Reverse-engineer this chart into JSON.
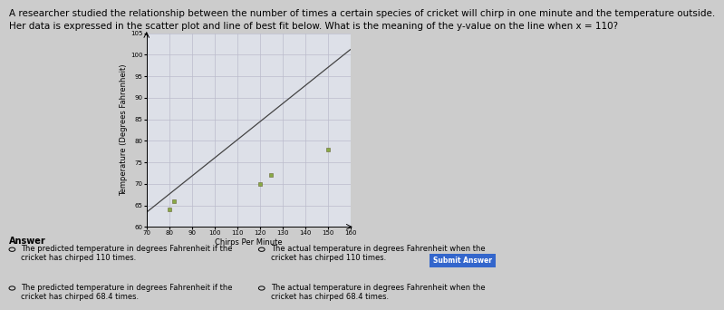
{
  "title_line1": "A researcher studied the relationship between the number of times a certain species of cricket will chirp in one minute and the temperature outside.",
  "title_line2": "Her data is expressed in the scatter plot and line of best fit below. What is the meaning of the y-value on the line when x = 110?",
  "xlabel": "Chirps Per Minute",
  "ylabel": "Temperature (Degrees Fahrenheit)",
  "x_min": 70,
  "x_max": 160,
  "x_ticks": [
    70,
    80,
    90,
    100,
    110,
    120,
    130,
    140,
    150,
    160
  ],
  "y_min": 60,
  "y_max": 105,
  "y_ticks": [
    60,
    65,
    70,
    75,
    80,
    85,
    90,
    95,
    100,
    105
  ],
  "scatter_x": [
    80,
    82,
    120,
    125,
    150
  ],
  "scatter_y": [
    64,
    66,
    70,
    72,
    78
  ],
  "line_x_start": 70,
  "line_x_end": 160,
  "line_slope": 0.42,
  "line_intercept": 34,
  "bg_color": "#cccccc",
  "plot_bg_color": "#dde0e8",
  "grid_color": "#bbbbcc",
  "scatter_color": "#88aa44",
  "line_color": "#444444",
  "answer_label": "Answer",
  "answer_options": [
    "The predicted temperature in degrees Fahrenheit if the\ncricket has chirped 110 times.",
    "The actual temperature in degrees Fahrenheit when the\ncricket has chirped 110 times.",
    "The predicted temperature in degrees Fahrenheit if the\ncricket has chirped 68.4 times.",
    "The actual temperature in degrees Fahrenheit when the\ncricket has chirped 68.4 times."
  ],
  "submit_btn_text": "Submit Answer",
  "submit_btn_color": "#3366cc",
  "title_fontsize": 7.5,
  "axis_label_fontsize": 6,
  "tick_fontsize": 5,
  "answer_fontsize": 7,
  "option_fontsize": 6
}
